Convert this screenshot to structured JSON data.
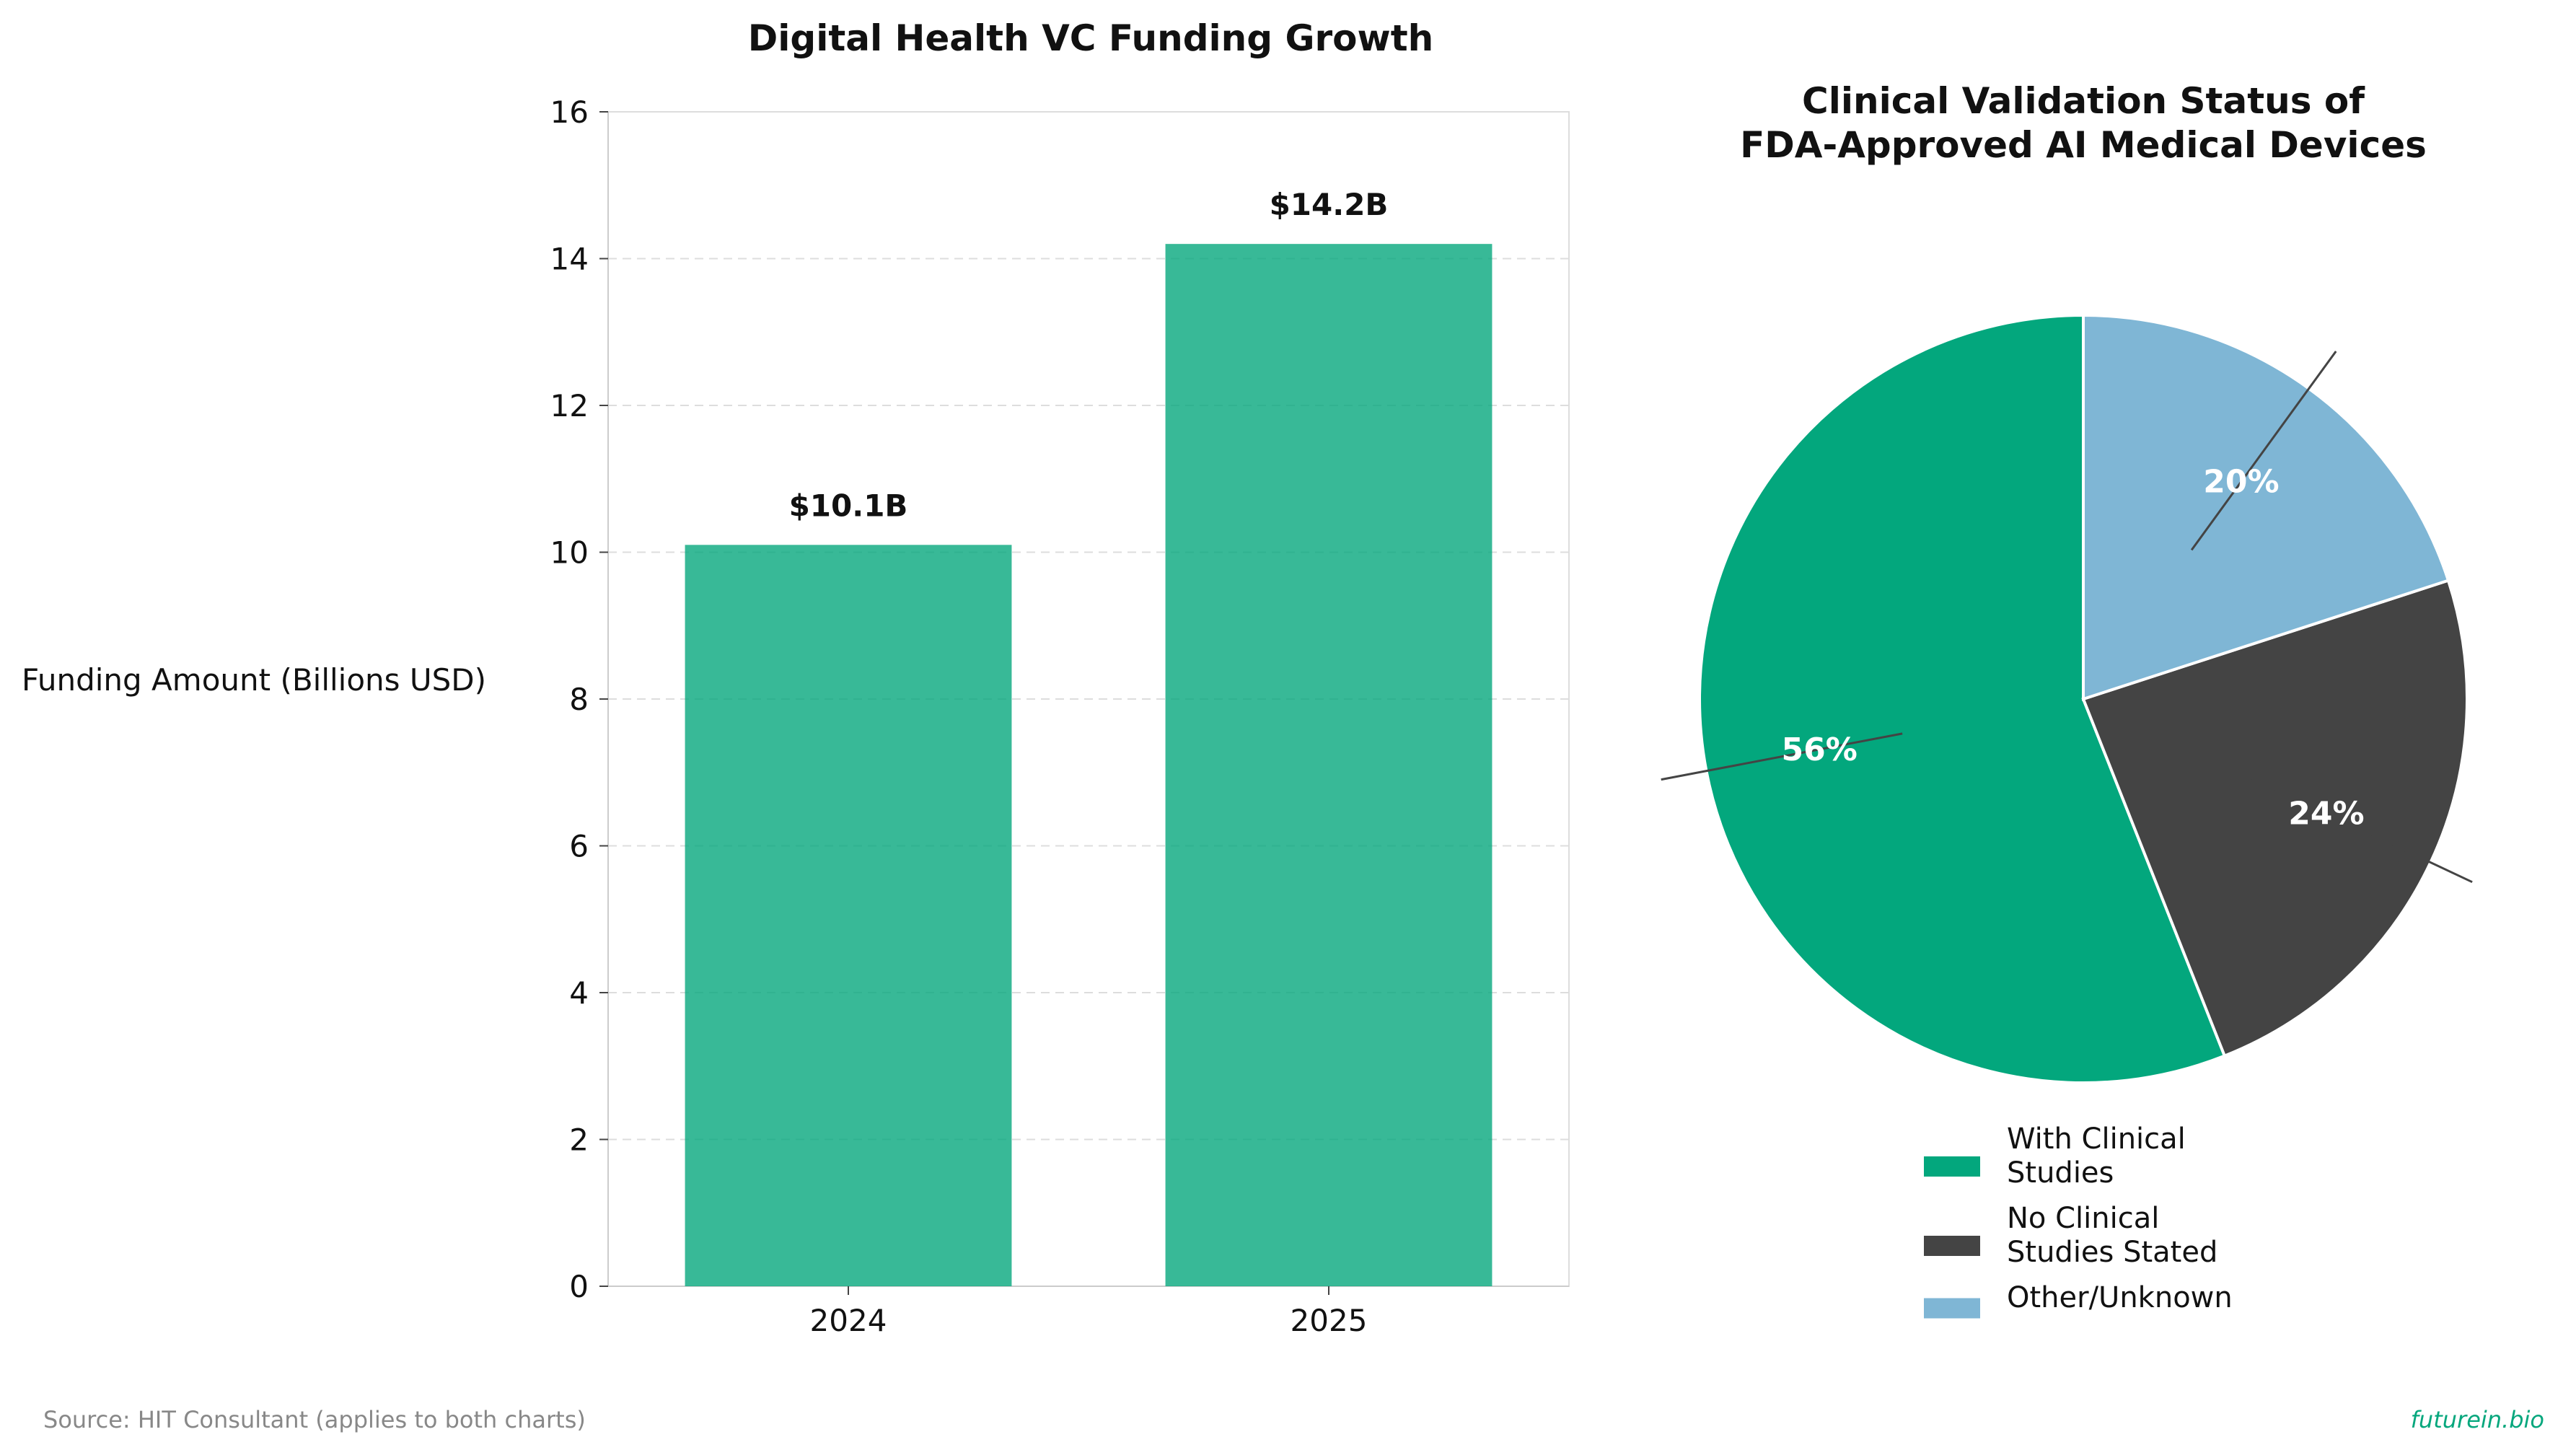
{
  "chart_data": [
    {
      "type": "bar",
      "title": "Digital Health VC Funding Growth",
      "xlabel": "",
      "ylabel": "Funding Amount (Billions USD)",
      "categories": [
        "2024",
        "2025"
      ],
      "values": [
        10.1,
        14.2
      ],
      "data_labels": [
        "$10.1B",
        "$14.2B"
      ],
      "ylim": [
        0,
        16
      ],
      "yticks": [
        "0",
        "2",
        "4",
        "6",
        "8",
        "10",
        "12",
        "14",
        "16"
      ],
      "grid": "horizontal dashed",
      "bar_color": "#06a77d"
    },
    {
      "type": "pie",
      "title": "Clinical Validation Status of\nFDA-Approved AI Medical Devices",
      "title_lines": [
        "Clinical Validation Status of",
        "FDA-Approved AI Medical Devices"
      ],
      "slices": [
        {
          "label": "With Clinical Studies",
          "legend_lines": [
            "With Clinical",
            "Studies"
          ],
          "value": 56,
          "pct_label": "56%",
          "color": "#03a77d"
        },
        {
          "label": "No Clinical Studies Stated",
          "legend_lines": [
            "No Clinical",
            "Studies Stated"
          ],
          "value": 24,
          "pct_label": "24%",
          "color": "#444444"
        },
        {
          "label": "Other/Unknown",
          "legend_lines": [
            "Other/Unknown"
          ],
          "value": 20,
          "pct_label": "20%",
          "color": "#7fb6d5"
        }
      ],
      "legend_position": "bottom"
    }
  ],
  "footer": {
    "source": "Source: HIT Consultant (applies to both charts)",
    "brand": "futurein.bio",
    "brand_color": "#06a77d"
  }
}
